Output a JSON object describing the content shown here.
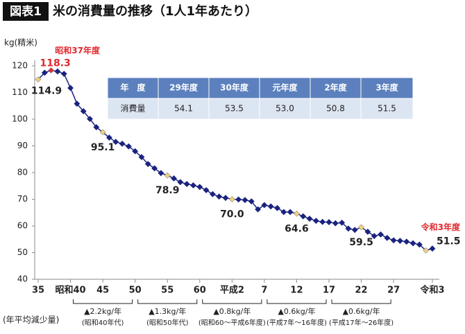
{
  "header": {
    "badge": "図表1",
    "title": "米の消費量の推移（1人1年あたり）"
  },
  "chart_data": {
    "type": "line",
    "y_label": "kg(精米)",
    "categories": [
      "35",
      null,
      null,
      null,
      null,
      "昭和40",
      null,
      null,
      null,
      null,
      "45",
      null,
      null,
      null,
      null,
      "50",
      null,
      null,
      null,
      null,
      "55",
      null,
      null,
      null,
      null,
      "60",
      null,
      null,
      null,
      null,
      "平成2",
      null,
      null,
      null,
      null,
      "7",
      null,
      null,
      null,
      null,
      "12",
      null,
      null,
      null,
      null,
      "17",
      null,
      null,
      null,
      null,
      "22",
      null,
      null,
      null,
      null,
      "27",
      null,
      null,
      null,
      null,
      null,
      "令和3"
    ],
    "series": [
      {
        "name": "消費量",
        "color": "#1a237e",
        "values": [
          114.9,
          117.4,
          118.3,
          117.9,
          117.0,
          111.7,
          105.8,
          103.0,
          100.1,
          97.0,
          95.1,
          93.1,
          91.5,
          90.8,
          89.8,
          88.0,
          85.8,
          83.2,
          81.6,
          79.8,
          78.9,
          77.8,
          76.4,
          75.7,
          75.2,
          74.6,
          73.4,
          71.9,
          71.0,
          70.5,
          70.0,
          69.9,
          69.7,
          69.2,
          66.2,
          67.8,
          67.3,
          66.7,
          65.2,
          65.2,
          64.6,
          63.6,
          62.7,
          61.9,
          61.5,
          61.4,
          61.0,
          61.2,
          59.0,
          58.5,
          59.5,
          57.8,
          56.2,
          56.8,
          55.5,
          54.6,
          54.4,
          54.1,
          53.5,
          53.0,
          50.8,
          51.5
        ],
        "value_labels": [
          "114.9",
          null,
          "118.3",
          null,
          null,
          null,
          null,
          null,
          null,
          null,
          "95.1",
          null,
          null,
          null,
          null,
          null,
          null,
          null,
          null,
          null,
          "78.9",
          null,
          null,
          null,
          null,
          null,
          null,
          null,
          null,
          null,
          "70.0",
          null,
          null,
          null,
          null,
          null,
          null,
          null,
          null,
          null,
          "64.6",
          null,
          null,
          null,
          null,
          null,
          null,
          null,
          null,
          null,
          "59.5",
          null,
          null,
          null,
          null,
          null,
          null,
          null,
          null,
          null,
          null,
          "51.5"
        ],
        "marker_colors": [
          "#f2d27a",
          null,
          "#e0282e",
          null,
          null,
          null,
          null,
          null,
          null,
          null,
          "#f2d27a",
          null,
          null,
          null,
          null,
          null,
          null,
          null,
          null,
          null,
          "#f2d27a",
          null,
          null,
          null,
          null,
          null,
          null,
          null,
          null,
          null,
          "#f2d27a",
          null,
          null,
          null,
          null,
          null,
          null,
          null,
          null,
          null,
          "#f2d27a",
          null,
          null,
          null,
          null,
          null,
          null,
          null,
          null,
          null,
          "#f2d27a",
          null,
          null,
          null,
          null,
          null,
          null,
          null,
          null,
          null,
          "#f2d27a",
          null
        ]
      }
    ],
    "annotations": [
      {
        "text": "昭和37年度",
        "point": 2,
        "color": "#e0282e",
        "value_label_color": "#e0282e"
      },
      {
        "text": "令和3年度",
        "point": 61,
        "color": "#e0282e",
        "value_label_color": "#222222"
      }
    ],
    "ylim": [
      40,
      120
    ],
    "yticks": [
      40,
      50,
      60,
      70,
      80,
      90,
      100,
      110,
      120
    ],
    "grid": false,
    "rate_title": "(年平均減少量)",
    "rate_notes": [
      {
        "rate": "▲2.2kg/年",
        "period": "(昭和40年代)"
      },
      {
        "rate": "▲1.3kg/年",
        "period": "(昭和50年代)"
      },
      {
        "rate": "▲0.8kg/年",
        "period": "(昭和60～平成6年度)"
      },
      {
        "rate": "▲0.6kg/年",
        "period": "(平成7年～16年度)"
      },
      {
        "rate": "▲0.6kg/年",
        "period": "(平成17年～26年度)"
      }
    ]
  },
  "table": {
    "header": [
      "年　度",
      "29年度",
      "30年度",
      "元年度",
      "2年度",
      "3年度"
    ],
    "rows": [
      [
        "消費量",
        "54.1",
        "53.5",
        "53.0",
        "50.8",
        "51.5"
      ]
    ]
  }
}
